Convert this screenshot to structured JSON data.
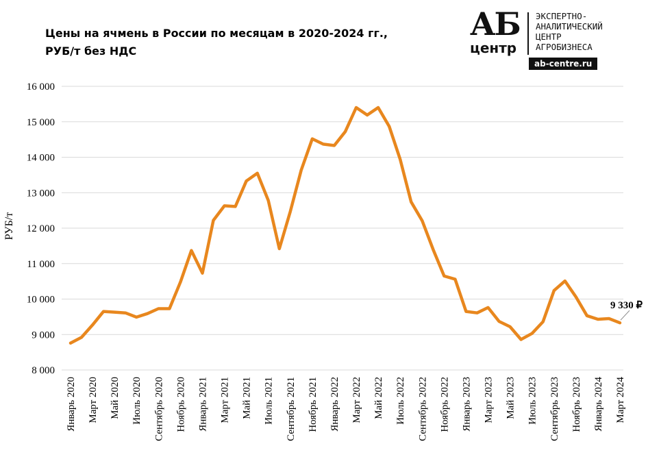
{
  "chart_data": {
    "type": "line",
    "title": "Цены на ячмень в России по месяцам в 2020-2024 гг., РУБ/т без НДС",
    "title_lines": [
      "Цены на ячмень в России по месяцам в 2020-2024 гг.,",
      "РУБ/т без НДС"
    ],
    "ylabel": "РУБ/т",
    "xlabel": "",
    "ylim": [
      8000,
      16000
    ],
    "yticks": [
      8000,
      9000,
      10000,
      11000,
      12000,
      13000,
      14000,
      15000,
      16000
    ],
    "ytick_labels": [
      "8 000",
      "9 000",
      "10 000",
      "11 000",
      "12 000",
      "13 000",
      "14 000",
      "15 000",
      "16 000"
    ],
    "grid": true,
    "color": "#E8871E",
    "x": [
      "Январь 2020",
      "Февраль 2020",
      "Март 2020",
      "Апрель 2020",
      "Май 2020",
      "Июнь 2020",
      "Июль 2020",
      "Август 2020",
      "Сентябрь 2020",
      "Октябрь 2020",
      "Ноябрь 2020",
      "Декабрь 2020",
      "Январь 2021",
      "Февраль 2021",
      "Март 2021",
      "Апрель 2021",
      "Май 2021",
      "Июнь 2021",
      "Июль 2021",
      "Август 2021",
      "Сентябрь 2021",
      "Октябрь 2021",
      "Ноябрь 2021",
      "Декабрь 2021",
      "Январь 2022",
      "Февраль 2022",
      "Март 2022",
      "Апрель 2022",
      "Май 2022",
      "Июнь 2022",
      "Июль 2022",
      "Август 2022",
      "Сентябрь 2022",
      "Октябрь 2022",
      "Ноябрь 2022",
      "Декабрь 2022",
      "Январь 2023",
      "Февраль 2023",
      "Март 2023",
      "Апрель 2023",
      "Май 2023",
      "Июнь 2023",
      "Июль 2023",
      "Август 2023",
      "Сентябрь 2023",
      "Октябрь 2023",
      "Ноябрь 2023",
      "Декабрь 2023",
      "Январь 2024",
      "Февраль 2024",
      "Март 2024"
    ],
    "x_tick_labels": [
      "Январь 2020",
      "Март 2020",
      "Май 2020",
      "Июль 2020",
      "Сентябрь 2020",
      "Ноябрь 2020",
      "Январь 2021",
      "Март 2021",
      "Май 2021",
      "Июль 2021",
      "Сентябрь 2021",
      "Ноябрь 2021",
      "Январь 2022",
      "Март 2022",
      "Май 2022",
      "Июль 2022",
      "Сентябрь 2022",
      "Ноябрь 2022",
      "Январь 2023",
      "Март 2023",
      "Май 2023",
      "Июль 2023",
      "Сентябрь 2023",
      "Ноябрь 2023",
      "Январь 2024",
      "Март 2024"
    ],
    "series": [
      {
        "values": [
          8760,
          8920,
          9270,
          9650,
          9630,
          9610,
          9490,
          9590,
          9730,
          9730,
          10480,
          11370,
          10730,
          12220,
          12630,
          12610,
          13330,
          13550,
          12780,
          11420,
          12470,
          13640,
          14520,
          14370,
          14330,
          14720,
          15400,
          15190,
          15400,
          14870,
          13940,
          12740,
          12210,
          11400,
          10650,
          10560,
          9650,
          9610,
          9760,
          9370,
          9220,
          8860,
          9030,
          9360,
          10240,
          10510,
          10060,
          9530,
          9430,
          9450,
          9330
        ]
      }
    ],
    "last_value_label": "9 330 ₽"
  },
  "logo": {
    "mark_top": "АБ",
    "mark_bottom": "центр",
    "text": "ЭКСПЕРТНО-\nАНАЛИТИЧЕСКИЙ\nЦЕНТР\nАГРОБИЗНЕСА",
    "site": "ab-centre.ru"
  }
}
